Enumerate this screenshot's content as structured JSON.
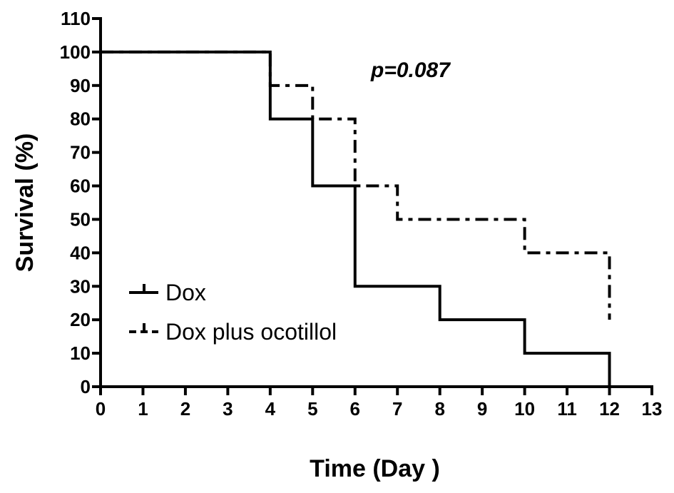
{
  "chart_data": {
    "type": "line",
    "subtype": "kaplan-meier-step",
    "title": "",
    "xlabel": "Time (Day )",
    "ylabel": "Survival (%)",
    "xlim": [
      0,
      13
    ],
    "ylim": [
      0,
      110
    ],
    "xticks": [
      0,
      1,
      2,
      3,
      4,
      5,
      6,
      7,
      8,
      9,
      10,
      11,
      12,
      13
    ],
    "yticks": [
      0,
      10,
      20,
      30,
      40,
      50,
      60,
      70,
      80,
      90,
      100,
      110
    ],
    "grid": false,
    "legend_position": "lower-left",
    "annotation": "p=0.087",
    "series": [
      {
        "name": "Dox",
        "style": "solid",
        "color": "#000000",
        "x": [
          0,
          4,
          5,
          6,
          8,
          10,
          12
        ],
        "y": [
          100,
          80,
          60,
          30,
          20,
          10,
          0
        ]
      },
      {
        "name": "Dox plus ocotillol",
        "style": "dash-dot",
        "color": "#000000",
        "x": [
          0,
          4,
          5,
          6,
          7,
          10,
          12
        ],
        "y": [
          100,
          90,
          80,
          60,
          50,
          40,
          20
        ]
      }
    ]
  }
}
